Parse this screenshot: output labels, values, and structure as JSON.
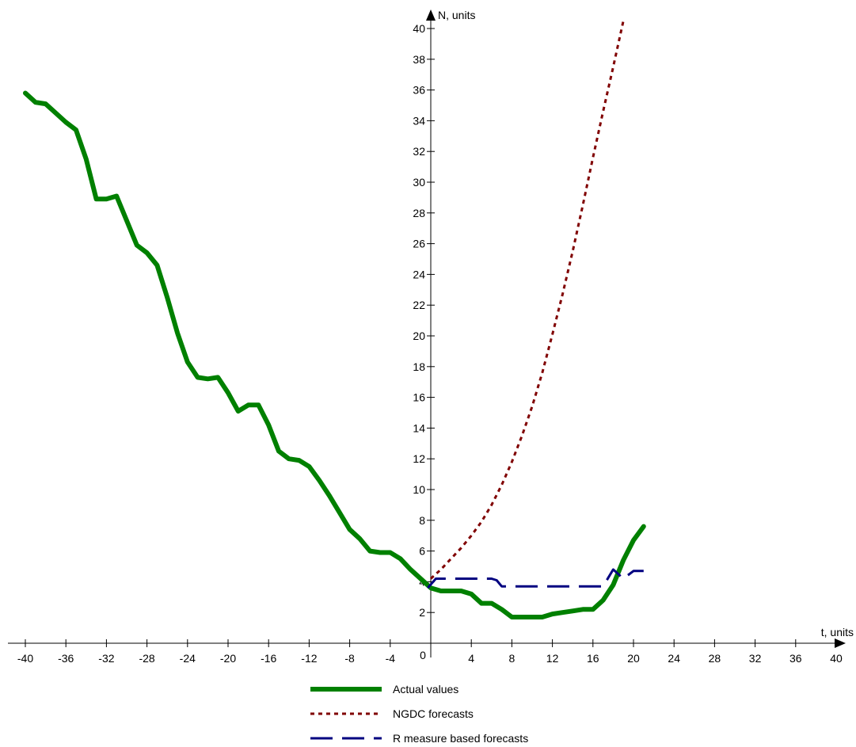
{
  "chart_data": {
    "type": "line",
    "xlabel": "t, units",
    "ylabel": "N, units",
    "origin_label": "0",
    "xlim": [
      -41,
      41
    ],
    "ylim": [
      0,
      40
    ],
    "x_ticks": [
      -40,
      -36,
      -32,
      -28,
      -24,
      -20,
      -16,
      -12,
      -8,
      -4,
      0,
      4,
      8,
      12,
      16,
      20,
      24,
      28,
      32,
      36,
      40
    ],
    "x_tick_labels": [
      "-40",
      "-36",
      "-32",
      "-28",
      "-24",
      "-20",
      "-16",
      "-12",
      "-8",
      "-4",
      "0",
      "4",
      "8",
      "12",
      "16",
      "20",
      "24",
      "28",
      "32",
      "36",
      "40"
    ],
    "y_ticks": [
      2,
      4,
      6,
      8,
      10,
      12,
      14,
      16,
      18,
      20,
      22,
      24,
      26,
      28,
      30,
      32,
      34,
      36,
      38,
      40
    ],
    "y_tick_labels": [
      "2",
      "4",
      "6",
      "8",
      "10",
      "12",
      "14",
      "16",
      "18",
      "20",
      "22",
      "24",
      "26",
      "28",
      "30",
      "32",
      "34",
      "36",
      "38",
      "40"
    ],
    "grid": false,
    "legend_position": "bottom-center",
    "series": [
      {
        "name": "Actual values",
        "color": "#008000",
        "style": "solid-thick",
        "x": [
          -40,
          -39,
          -38,
          -37,
          -36,
          -35,
          -34,
          -33,
          -32,
          -31,
          -30,
          -29,
          -28,
          -27,
          -26,
          -25,
          -24,
          -23,
          -22,
          -21,
          -20,
          -19,
          -18,
          -17,
          -16,
          -15,
          -14,
          -13,
          -12,
          -11,
          -10,
          -9,
          -8,
          -7,
          -6,
          -5,
          -4,
          -3,
          -2,
          -1,
          0,
          1,
          2,
          3,
          4,
          5,
          6,
          7,
          8,
          9,
          10,
          11,
          12,
          13,
          14,
          15,
          16,
          17,
          18,
          19,
          20,
          21
        ],
        "y": [
          35.8,
          35.2,
          35.1,
          34.5,
          33.9,
          33.4,
          31.5,
          28.9,
          28.9,
          29.1,
          27.5,
          25.9,
          25.4,
          24.6,
          22.5,
          20.2,
          18.3,
          17.3,
          17.2,
          17.3,
          16.3,
          15.1,
          15.5,
          15.5,
          14.2,
          12.5,
          12.0,
          11.9,
          11.5,
          10.6,
          9.6,
          8.5,
          7.4,
          6.8,
          6.0,
          5.9,
          5.9,
          5.5,
          4.8,
          4.2,
          3.6,
          3.4,
          3.4,
          3.4,
          3.2,
          2.6,
          2.6,
          2.2,
          1.7,
          1.7,
          1.7,
          1.7,
          1.9,
          2.0,
          2.1,
          2.2,
          2.2,
          2.8,
          3.8,
          5.4,
          6.7,
          7.6
        ]
      },
      {
        "name": "NGDC forecasts",
        "color": "#800000",
        "style": "dotted",
        "x": [
          0,
          1,
          2,
          3,
          4,
          5,
          6,
          7,
          8,
          9,
          10,
          11,
          12,
          13,
          14,
          15,
          16,
          17,
          18,
          19
        ],
        "y": [
          4.2,
          4.8,
          5.5,
          6.2,
          7.0,
          7.9,
          9.0,
          10.3,
          11.8,
          13.5,
          15.4,
          17.6,
          20.1,
          22.7,
          25.5,
          28.5,
          31.6,
          34.6,
          37.5,
          40.5
        ]
      },
      {
        "name": "R measure based forecasts",
        "color": "#000080",
        "style": "dashed",
        "x": [
          -0.3,
          0.5,
          1,
          2,
          3,
          4,
          5,
          6,
          6.5,
          7,
          8,
          10,
          12,
          14,
          16,
          17,
          18,
          19,
          20,
          21
        ],
        "y": [
          3.6,
          4.2,
          4.2,
          4.2,
          4.2,
          4.2,
          4.2,
          4.2,
          4.1,
          3.7,
          3.7,
          3.7,
          3.7,
          3.7,
          3.7,
          3.7,
          4.8,
          4.2,
          4.7,
          4.7
        ]
      }
    ]
  }
}
